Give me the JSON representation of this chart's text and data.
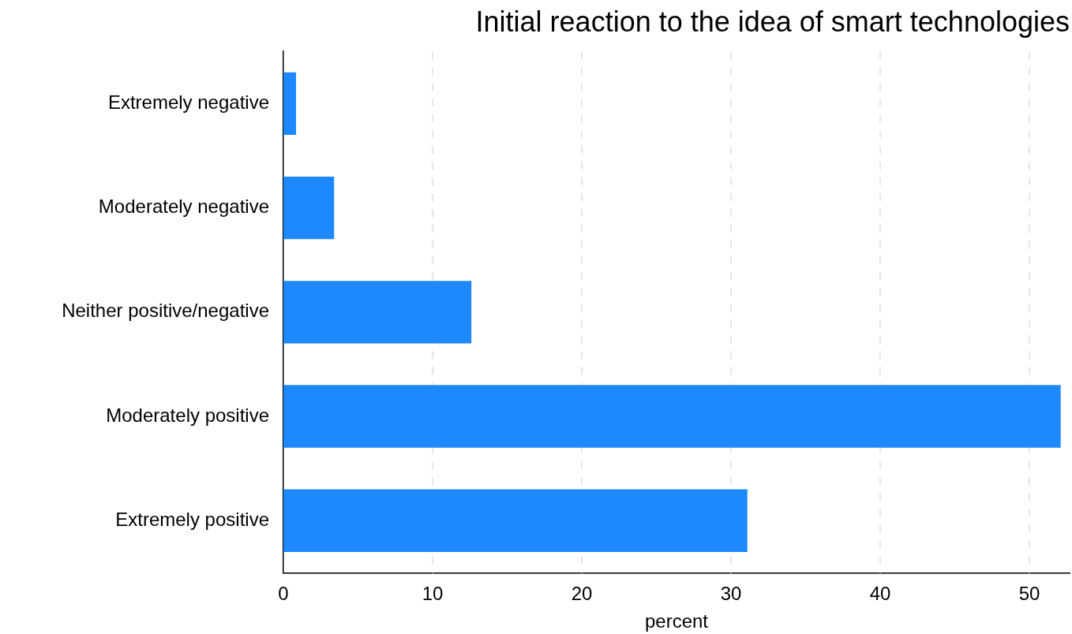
{
  "chart_data": {
    "type": "bar",
    "orientation": "horizontal",
    "title": "Initial reaction to the idea of smart technologies",
    "xlabel": "percent",
    "categories": [
      "Extremely negative",
      "Moderately negative",
      "Neither positive/negative",
      "Moderately positive",
      "Extremely positive"
    ],
    "values": [
      0.85,
      3.4,
      12.6,
      52.1,
      31.1
    ],
    "color": "#1e88ff",
    "xlim": [
      0,
      52.7
    ],
    "xticks": [
      0,
      10,
      20,
      30,
      40,
      50
    ],
    "grid": "x",
    "legend": false
  }
}
